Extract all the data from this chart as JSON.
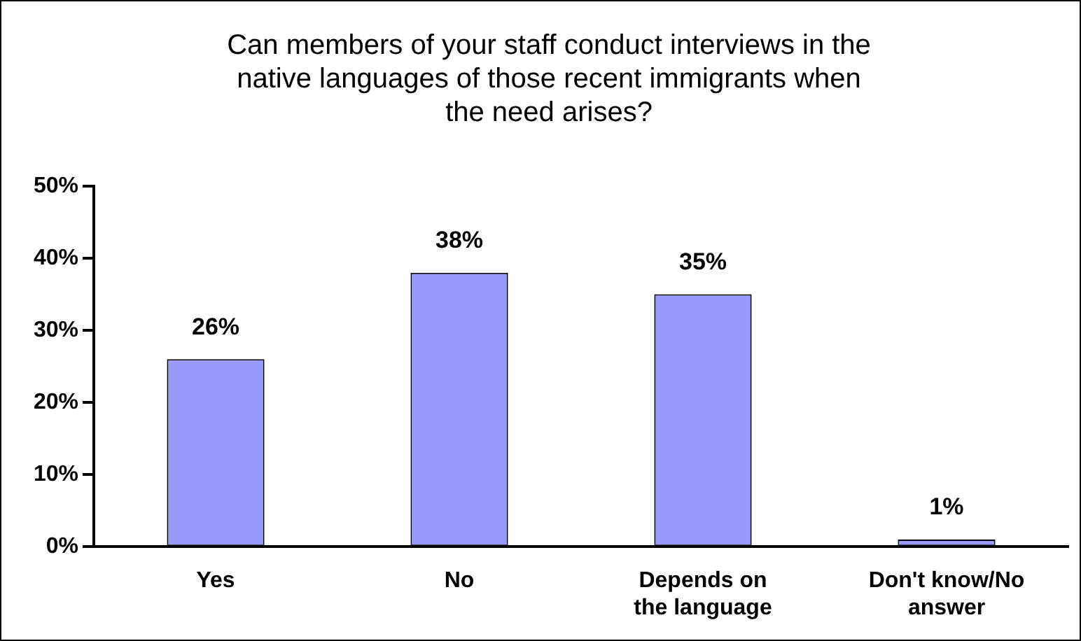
{
  "chart_data": {
    "type": "bar",
    "title": "Can members of your staff conduct interviews in the native languages of those recent immigrants when the need arises?",
    "categories": [
      "Yes",
      "No",
      "Depends on the language",
      "Don't know/No answer"
    ],
    "values": [
      26,
      38,
      35,
      1
    ],
    "value_labels": [
      "26%",
      "38%",
      "35%",
      "1%"
    ],
    "color": "#9999ff",
    "ylim": [
      0,
      50
    ],
    "yticks": [
      {
        "value": 0,
        "label": "0%"
      },
      {
        "value": 10,
        "label": "10%"
      },
      {
        "value": 20,
        "label": "20%"
      },
      {
        "value": 30,
        "label": "30%"
      },
      {
        "value": 40,
        "label": "40%"
      },
      {
        "value": 50,
        "label": "50%"
      }
    ],
    "grid": false,
    "legend": false
  }
}
